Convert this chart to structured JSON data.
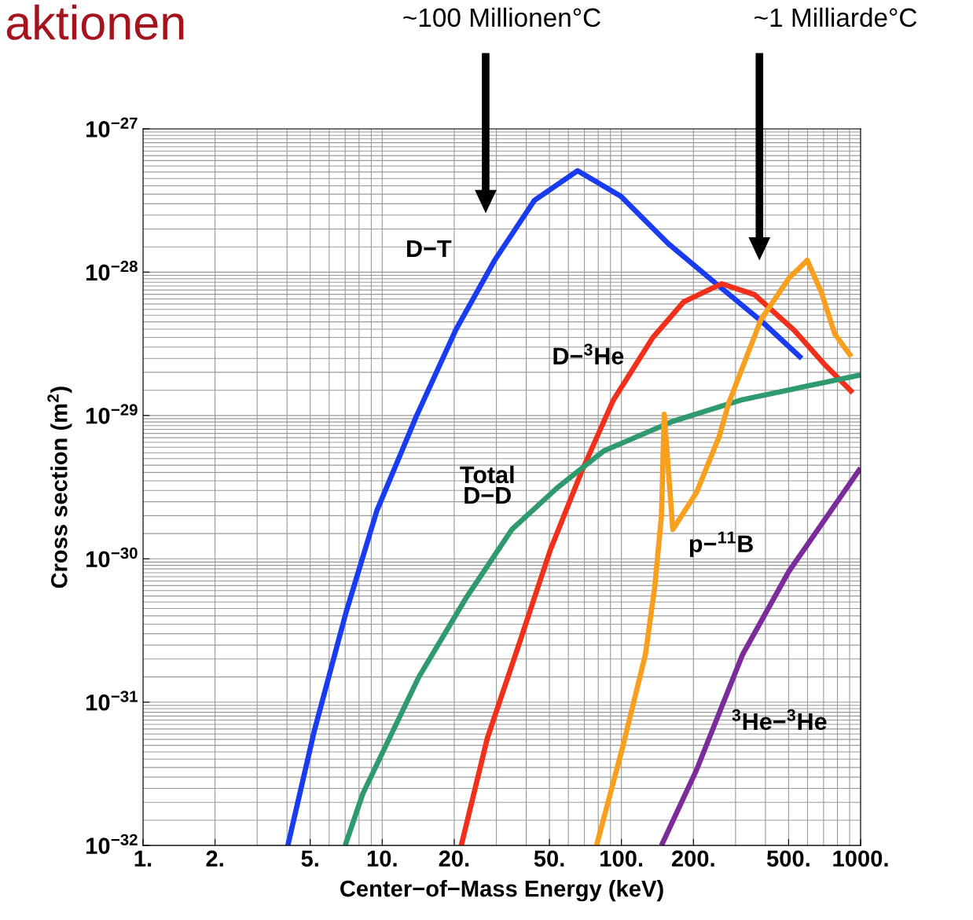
{
  "chart_data": {
    "type": "line",
    "title": "aktionen",
    "xlabel": "Center−of−Mass Energy (keV)",
    "ylabel": "Cross section (m$^{2}$)",
    "log": "xy",
    "grid": true,
    "legend": false,
    "marker": "none",
    "line_style": "solid",
    "xlim": [
      1,
      1000
    ],
    "ylim": [
      1e-32,
      1e-27
    ],
    "xticks": [
      {
        "value": 1,
        "label": "1."
      },
      {
        "value": 2,
        "label": "2."
      },
      {
        "value": 5,
        "label": "5."
      },
      {
        "value": 10,
        "label": "10."
      },
      {
        "value": 20,
        "label": "20."
      },
      {
        "value": 50,
        "label": "50."
      },
      {
        "value": 100,
        "label": "100."
      },
      {
        "value": 200,
        "label": "200."
      },
      {
        "value": 500,
        "label": "500."
      },
      {
        "value": 1000,
        "label": "1000."
      }
    ],
    "yticks": [
      {
        "value": 1e-32,
        "label": "10$^{−32}$"
      },
      {
        "value": 1e-31,
        "label": "10$^{−31}$"
      },
      {
        "value": 1e-30,
        "label": "10$^{−30}$"
      },
      {
        "value": 1e-29,
        "label": "10$^{−29}$"
      },
      {
        "value": 1e-28,
        "label": "10$^{−28}$"
      },
      {
        "value": 1e-27,
        "label": "10$^{−27}$"
      }
    ],
    "annotations": [
      "~100 Millionen°C",
      "~1 Milliarde°C"
    ],
    "series": [
      {
        "name": "D−T",
        "color": "#1a3cf0",
        "x": [
          4.03,
          5.2,
          7.05,
          9.5,
          13.9,
          20.3,
          29.7,
          43.3,
          65.6,
          99.5,
          157,
          247,
          389,
          567
        ],
        "values": [
          1e-32,
          6.3e-32,
          4.2e-31,
          2.17e-30,
          9.9e-30,
          3.95e-29,
          1.23e-28,
          3.17e-28,
          5.1e-28,
          3.38e-28,
          1.58e-28,
          8.4e-29,
          4.48e-29,
          2.5e-29
        ]
      },
      {
        "name": "D−$^{3}$He",
        "color": "#f0301a",
        "x": [
          21.4,
          27.5,
          37.2,
          50.4,
          68.2,
          92.3,
          135,
          182,
          262,
          360,
          526,
          712,
          927
        ],
        "values": [
          1e-32,
          5.6e-32,
          2.5e-31,
          1.15e-30,
          4.07e-30,
          1.27e-29,
          3.48e-29,
          6.2e-29,
          8.3e-29,
          6.97e-29,
          3.95e-29,
          2.24e-29,
          1.44e-29
        ]
      },
      {
        "name": "Total\nD−D",
        "color": "#2e9a6e",
        "x": [
          7.0,
          8.3,
          14.2,
          22.3,
          34.8,
          53.9,
          84.3,
          164,
          321,
          1000
        ],
        "values": [
          1e-32,
          2.3e-32,
          1.49e-31,
          5.26e-31,
          1.6e-30,
          3.13e-30,
          5.65e-30,
          9.1e-30,
          1.29e-29,
          1.92e-29
        ]
      },
      {
        "name": "p−$^{11}$B",
        "color": "#f8a01e",
        "x": [
          78.7,
          101,
          126,
          138,
          147,
          151,
          164,
          206,
          256,
          281,
          383,
          502,
          598,
          686,
          780,
          914
        ],
        "values": [
          1e-32,
          4.8e-32,
          2.15e-31,
          6.5e-31,
          2e-30,
          1.02e-29,
          1.6e-30,
          2.9e-30,
          7.1e-30,
          1.22e-29,
          4.66e-29,
          9.1e-29,
          1.21e-28,
          7.2e-29,
          3.7e-29,
          2.57e-29
        ]
      },
      {
        "name": "$^{3}$He−$^{3}$He",
        "color": "#7b2b9a",
        "x": [
          147,
          206,
          321,
          502,
          1000
        ],
        "values": [
          1e-32,
          3.36e-32,
          2.15e-31,
          8.2e-31,
          4.3e-30
        ]
      }
    ]
  }
}
